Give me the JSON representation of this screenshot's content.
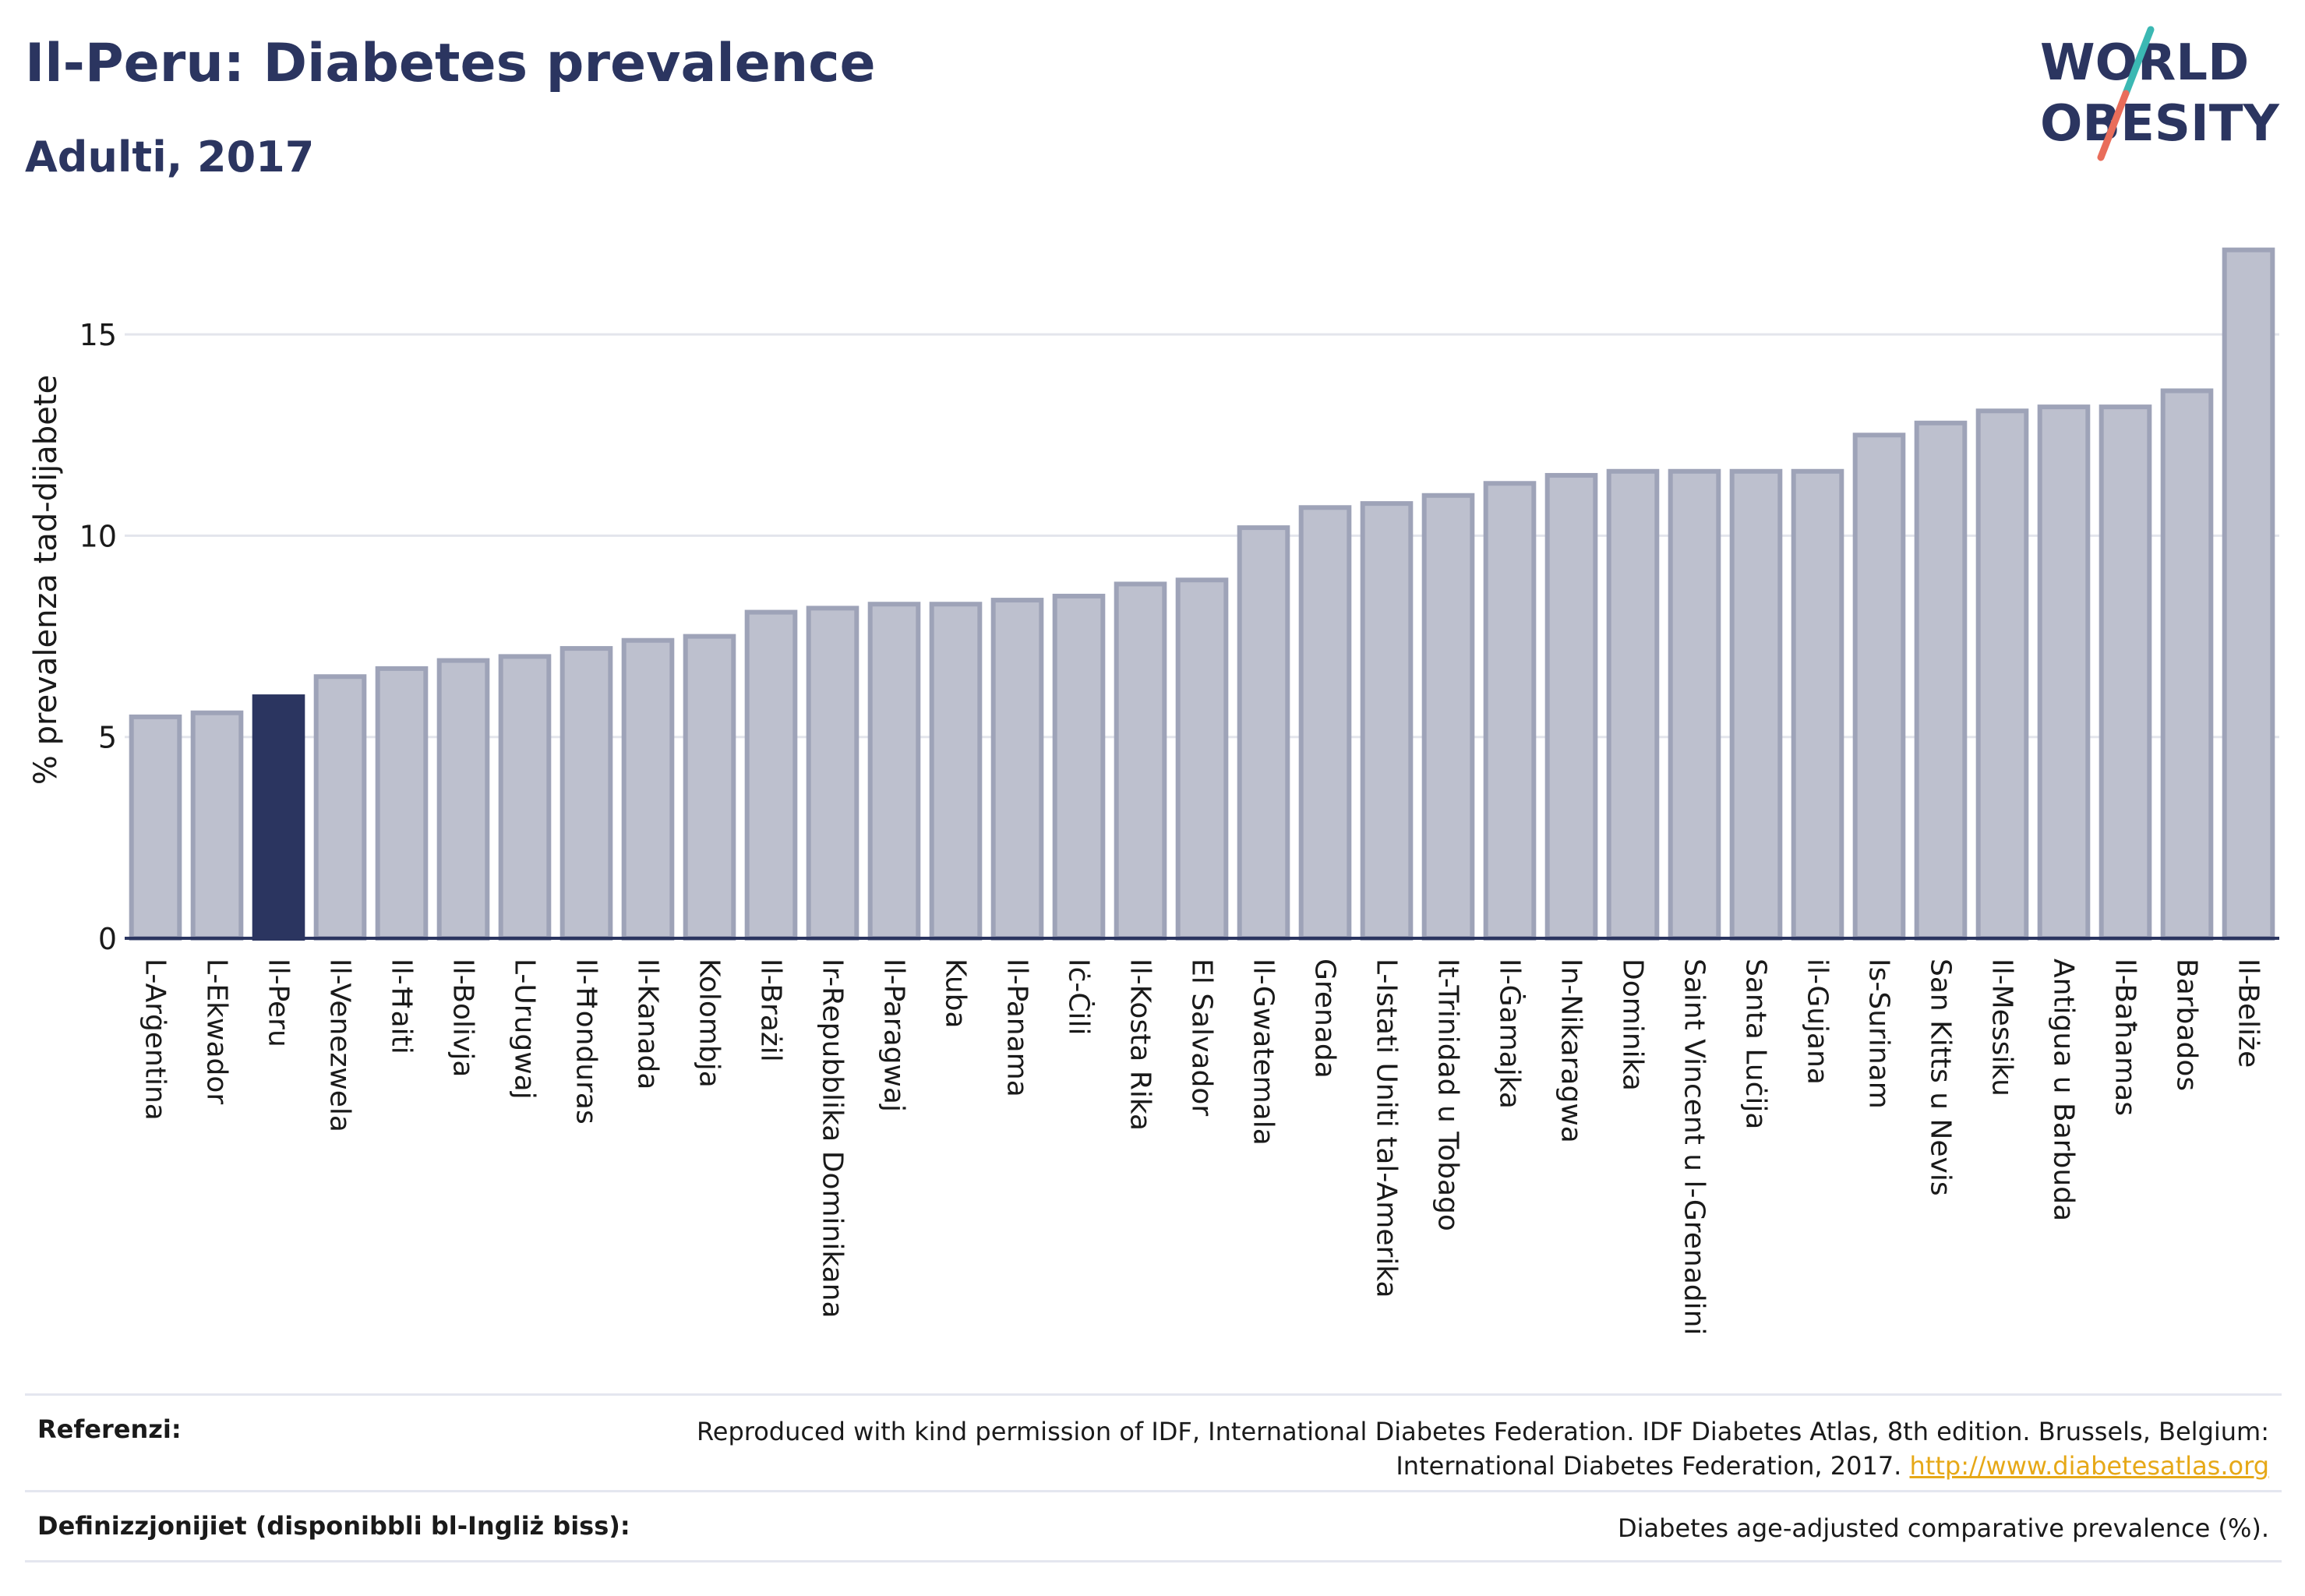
{
  "header": {
    "title": "Il-Peru: Diabetes prevalence",
    "subtitle": "Adulti, 2017"
  },
  "logo": {
    "line1": "WORLD",
    "line2": "OBESITY",
    "colors": {
      "text": "#2b3560",
      "slash_top": "#3bb8b3",
      "slash_bottom": "#e96d5a"
    }
  },
  "chart_data": {
    "type": "bar",
    "title": "Il-Peru: Diabetes prevalence",
    "subtitle": "Adulti, 2017",
    "ylabel": "% prevalenza tad-dijabete",
    "xlabel": "",
    "ylim": [
      0,
      17.5
    ],
    "yticks": [
      0,
      5,
      10,
      15
    ],
    "grid": true,
    "highlight": "Il-Peru",
    "colors": {
      "bar": "#bdc0ce",
      "bar_border": "#9ea3b8",
      "highlight": "#2b3560"
    },
    "categories": [
      "L-Arġentina",
      "L-Ekwador",
      "Il-Peru",
      "Il-Venezwela",
      "Il-Ħaiti",
      "Il-Bolivja",
      "L-Urugwaj",
      "Il-Ħonduras",
      "Il-Kanada",
      "Kolombja",
      "Il-Brażil",
      "Ir-Repubblika Dominikana",
      "Il-Paragwaj",
      "Kuba",
      "Il-Panama",
      "Iċ-Ċili",
      "Il-Kosta Rika",
      "El Salvador",
      "Il-Gwatemala",
      "Grenada",
      "L-Istati Uniti tal-Amerika",
      "It-Trinidad u Tobago",
      "Il-Ġamajka",
      "In-Nikaragwa",
      "Dominika",
      "Saint Vincent u l-Grenadini",
      "Santa Luċija",
      "il-Gujana",
      "Is-Surinam",
      "San Kitts u Nevis",
      "Il-Messiku",
      "Antigua u Barbuda",
      "Il-Baħamas",
      "Barbados",
      "Il-Beliże"
    ],
    "values": [
      5.5,
      5.6,
      6.0,
      6.5,
      6.7,
      6.9,
      7.0,
      7.2,
      7.4,
      7.5,
      8.1,
      8.2,
      8.3,
      8.3,
      8.4,
      8.5,
      8.8,
      8.9,
      10.2,
      10.7,
      10.8,
      11.0,
      11.3,
      11.5,
      11.6,
      11.6,
      11.6,
      11.6,
      12.5,
      12.8,
      13.1,
      13.2,
      13.2,
      13.6,
      17.1
    ]
  },
  "footer": {
    "references_label": "Referenzi:",
    "references_text_line1": "Reproduced with kind permission of IDF, International Diabetes Federation. IDF Diabetes Atlas, 8th edition. Brussels, Belgium:",
    "references_text_line2": "International Diabetes Federation, 2017.",
    "references_link": "http://www.diabetesatlas.org",
    "definitions_label": "Definizzjonijiet (disponibbli bl-Ingliż biss):",
    "definitions_text": "Diabetes age-adjusted comparative prevalence (%)."
  }
}
